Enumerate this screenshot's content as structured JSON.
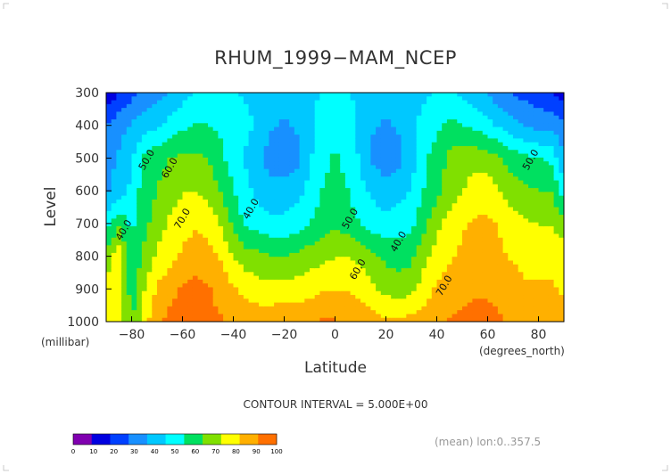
{
  "chart_data": {
    "type": "heatmap",
    "title": "RHUM_1999−MAM_NCEP",
    "xlabel": "Latitude",
    "ylabel": "Level",
    "x_unit": "(degrees_north)",
    "y_unit": "(millibar)",
    "xlim": [
      -90,
      90
    ],
    "ylim": [
      1000,
      300
    ],
    "x_ticks": [
      -80,
      -60,
      -40,
      -20,
      0,
      20,
      40,
      60,
      80
    ],
    "y_ticks": [
      300,
      400,
      500,
      600,
      700,
      800,
      900,
      1000
    ],
    "contour_interval_text": "CONTOUR INTERVAL = 5.000E+00",
    "footnote": "(mean) lon:0..357.5",
    "contour_labels": [
      {
        "text": "50.0",
        "lat": -73,
        "level": 510
      },
      {
        "text": "60.0",
        "lat": -64,
        "level": 535
      },
      {
        "text": "70.0",
        "lat": -59,
        "level": 690
      },
      {
        "text": "40.0",
        "lat": -82,
        "level": 725
      },
      {
        "text": "40.0",
        "lat": -32,
        "level": 660
      },
      {
        "text": "50.0",
        "lat": 7,
        "level": 690
      },
      {
        "text": "60.0",
        "lat": 10,
        "level": 845
      },
      {
        "text": "40.0",
        "lat": 26,
        "level": 760
      },
      {
        "text": "70.0",
        "lat": 44,
        "level": 895
      },
      {
        "text": "50.0",
        "lat": 78,
        "level": 510
      }
    ],
    "colorbar": {
      "ticks": [
        "0",
        "10",
        "20",
        "30",
        "40",
        "50",
        "60",
        "70",
        "80",
        "90",
        "100"
      ],
      "colors": [
        "#8000b0",
        "#0000e0",
        "#0040ff",
        "#1890ff",
        "#00c8ff",
        "#00ffff",
        "#00e060",
        "#80e000",
        "#ffff00",
        "#ffb000",
        "#ff7000",
        "#ff3c00",
        "#e00000"
      ]
    },
    "field": {
      "lat": [
        -90,
        -85,
        -80,
        -75,
        -70,
        -65,
        -60,
        -55,
        -50,
        -45,
        -40,
        -35,
        -30,
        -25,
        -20,
        -15,
        -10,
        -5,
        0,
        5,
        10,
        15,
        20,
        25,
        30,
        35,
        40,
        45,
        50,
        55,
        60,
        65,
        70,
        75,
        80,
        85,
        90
      ],
      "levels": [
        300,
        400,
        500,
        600,
        700,
        800,
        900,
        1000
      ],
      "rhum": [
        [
          5,
          12,
          18,
          22,
          26,
          30,
          34,
          38,
          40,
          40,
          38,
          36,
          34,
          33,
          33,
          34,
          36,
          38,
          38,
          38,
          36,
          34,
          33,
          33,
          34,
          36,
          38,
          38,
          36,
          32,
          28,
          24,
          20,
          18,
          16,
          14,
          8
        ],
        [
          22,
          26,
          30,
          34,
          36,
          40,
          44,
          46,
          46,
          44,
          42,
          40,
          36,
          30,
          28,
          30,
          36,
          40,
          42,
          40,
          36,
          30,
          28,
          30,
          36,
          40,
          44,
          48,
          46,
          44,
          40,
          36,
          32,
          28,
          26,
          26,
          22
        ],
        [
          26,
          30,
          36,
          48,
          52,
          54,
          56,
          56,
          54,
          48,
          42,
          36,
          30,
          26,
          25,
          27,
          36,
          44,
          47,
          44,
          36,
          27,
          25,
          27,
          34,
          44,
          50,
          56,
          60,
          60,
          58,
          54,
          50,
          48,
          46,
          44,
          30
        ],
        [
          28,
          32,
          40,
          50,
          54,
          58,
          62,
          62,
          60,
          54,
          46,
          40,
          34,
          32,
          32,
          34,
          40,
          46,
          48,
          46,
          40,
          36,
          32,
          34,
          38,
          46,
          52,
          58,
          62,
          66,
          68,
          62,
          58,
          56,
          54,
          54,
          42
        ],
        [
          42,
          52,
          44,
          52,
          58,
          64,
          68,
          70,
          68,
          62,
          52,
          44,
          42,
          40,
          40,
          42,
          46,
          50,
          52,
          50,
          46,
          42,
          40,
          42,
          44,
          52,
          60,
          66,
          70,
          72,
          72,
          70,
          66,
          64,
          62,
          62,
          58
        ],
        [
          58,
          68,
          46,
          56,
          64,
          68,
          72,
          74,
          74,
          70,
          62,
          58,
          56,
          54,
          54,
          56,
          58,
          60,
          62,
          62,
          60,
          56,
          52,
          50,
          52,
          60,
          66,
          70,
          72,
          74,
          74,
          72,
          70,
          68,
          68,
          68,
          66
        ],
        [
          64,
          70,
          50,
          62,
          72,
          76,
          80,
          82,
          80,
          76,
          72,
          68,
          66,
          66,
          66,
          66,
          68,
          70,
          70,
          70,
          68,
          64,
          60,
          58,
          60,
          66,
          72,
          74,
          76,
          78,
          78,
          76,
          74,
          72,
          72,
          72,
          70
        ],
        [
          62,
          68,
          52,
          68,
          76,
          82,
          86,
          84,
          82,
          80,
          78,
          76,
          76,
          76,
          78,
          78,
          78,
          80,
          80,
          78,
          76,
          74,
          72,
          72,
          74,
          76,
          78,
          80,
          82,
          82,
          82,
          80,
          78,
          76,
          76,
          74,
          72
        ]
      ]
    }
  }
}
